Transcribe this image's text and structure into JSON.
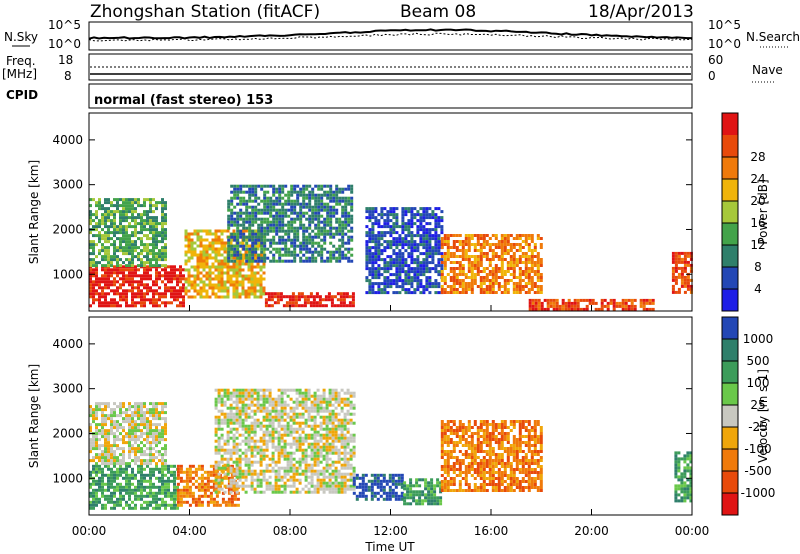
{
  "header": {
    "title": "Zhongshan Station (fitACF)",
    "beam": "Beam 08",
    "date": "18/Apr/2013"
  },
  "top_panels": {
    "nsky_label": "N.Sky",
    "nsearch_label": "N.Search",
    "freq_label_1": "Freq.",
    "freq_label_2": "[MHz]",
    "nave_label": "Nave",
    "cpid_label": "CPID",
    "cpid_text": "normal (fast stereo) 153",
    "noise_ticks_left": [
      "10^5",
      "10^0"
    ],
    "noise_ticks_right": [
      "10^5",
      "10^0"
    ],
    "freq_ticks": [
      "18",
      "8"
    ],
    "nave_ticks": [
      "60",
      "0"
    ]
  },
  "colors": {
    "power_scale": [
      "#1e1ee6",
      "#2347b5",
      "#2f7f6b",
      "#43a34a",
      "#a6c83a",
      "#f0b40a",
      "#f07a0a",
      "#e84a0a",
      "#e01414"
    ],
    "velocity_scale": [
      "#e01414",
      "#e84a0a",
      "#f07a0a",
      "#f0a60a",
      "#c8c8c0",
      "#6ac84a",
      "#3c9c5a",
      "#2f7f6b",
      "#2347b5"
    ]
  },
  "chart_data": [
    {
      "type": "heatmap",
      "name": "power",
      "xlabel": "Time UT",
      "ylabel": "Slant Range [km]",
      "xlim": [
        0,
        24
      ],
      "ylim": [
        180,
        4600
      ],
      "xticks": [
        "00:00",
        "04:00",
        "08:00",
        "12:00",
        "16:00",
        "20:00",
        "00:00"
      ],
      "yticks": [
        1000,
        2000,
        3000,
        4000
      ],
      "colorbar_label": "Power [dB]",
      "colorbar_ticks": [
        4,
        8,
        12,
        16,
        20,
        24,
        28
      ],
      "regions": [
        {
          "t0": 0.0,
          "t1": 3.8,
          "r0": 300,
          "r1": 1200,
          "level": 8
        },
        {
          "t0": 0.0,
          "t1": 3.0,
          "r0": 1200,
          "r1": 2700,
          "level": 3
        },
        {
          "t0": 3.8,
          "t1": 7.0,
          "r0": 500,
          "r1": 2000,
          "level": 5
        },
        {
          "t0": 5.5,
          "t1": 10.5,
          "r0": 1300,
          "r1": 3000,
          "level": 2
        },
        {
          "t0": 7.0,
          "t1": 10.5,
          "r0": 300,
          "r1": 600,
          "level": 8
        },
        {
          "t0": 11.0,
          "t1": 14.0,
          "r0": 600,
          "r1": 2500,
          "level": 1
        },
        {
          "t0": 14.0,
          "t1": 18.0,
          "r0": 600,
          "r1": 1900,
          "level": 6
        },
        {
          "t0": 17.5,
          "t1": 22.5,
          "r0": 200,
          "r1": 450,
          "level": 7
        },
        {
          "t0": 23.2,
          "t1": 24.0,
          "r0": 600,
          "r1": 1500,
          "level": 7
        }
      ]
    },
    {
      "type": "heatmap",
      "name": "velocity",
      "xlabel": "Time UT",
      "ylabel": "Slant Range [km]",
      "xlim": [
        0,
        24
      ],
      "ylim": [
        180,
        4600
      ],
      "xticks": [
        "00:00",
        "04:00",
        "08:00",
        "12:00",
        "16:00",
        "20:00",
        "00:00"
      ],
      "yticks": [
        1000,
        2000,
        3000,
        4000
      ],
      "colorbar_label": "Velocity [m s-1]",
      "colorbar_ticks": [
        "-1000",
        "-500",
        "-100",
        "-25",
        "25",
        "100",
        "500",
        "1000"
      ],
      "regions": [
        {
          "t0": 0.0,
          "t1": 3.5,
          "r0": 300,
          "r1": 1300,
          "level": 6
        },
        {
          "t0": 0.0,
          "t1": 3.0,
          "r0": 1300,
          "r1": 2700,
          "level": 4
        },
        {
          "t0": 3.5,
          "t1": 6.0,
          "r0": 400,
          "r1": 1300,
          "level": 2
        },
        {
          "t0": 5.0,
          "t1": 10.5,
          "r0": 700,
          "r1": 3000,
          "level": 4
        },
        {
          "t0": 10.5,
          "t1": 12.5,
          "r0": 500,
          "r1": 1100,
          "level": 8
        },
        {
          "t0": 12.5,
          "t1": 14.0,
          "r0": 400,
          "r1": 1000,
          "level": 6
        },
        {
          "t0": 14.0,
          "t1": 18.0,
          "r0": 700,
          "r1": 2300,
          "level": 2
        },
        {
          "t0": 23.3,
          "t1": 24.0,
          "r0": 500,
          "r1": 1600,
          "level": 6
        }
      ]
    }
  ]
}
